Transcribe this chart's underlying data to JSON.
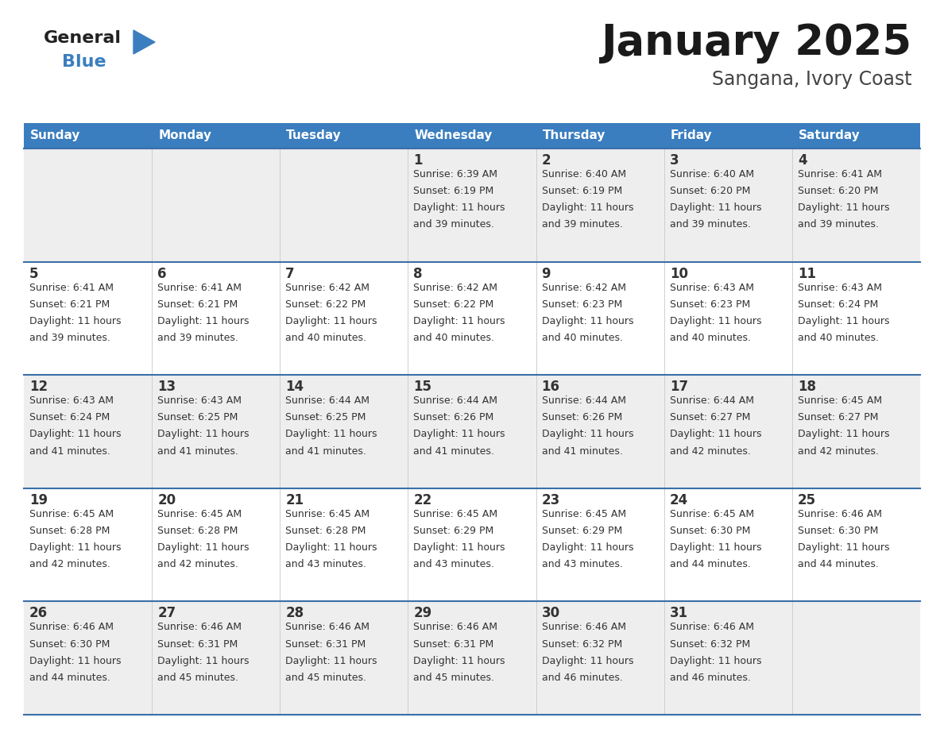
{
  "title": "January 2025",
  "subtitle": "Sangana, Ivory Coast",
  "header_bg": "#3a7ebf",
  "header_text": "#ffffff",
  "row_bg_light": "#eeeeee",
  "row_bg_white": "#ffffff",
  "cell_border_color": "#3a6fa8",
  "day_names": [
    "Sunday",
    "Monday",
    "Tuesday",
    "Wednesday",
    "Thursday",
    "Friday",
    "Saturday"
  ],
  "days": [
    {
      "day": 1,
      "col": 3,
      "row": 0,
      "sunrise": "6:39 AM",
      "sunset": "6:19 PM",
      "daylight_line3": "Daylight: 11 hours",
      "daylight_line4": "and 39 minutes."
    },
    {
      "day": 2,
      "col": 4,
      "row": 0,
      "sunrise": "6:40 AM",
      "sunset": "6:19 PM",
      "daylight_line3": "Daylight: 11 hours",
      "daylight_line4": "and 39 minutes."
    },
    {
      "day": 3,
      "col": 5,
      "row": 0,
      "sunrise": "6:40 AM",
      "sunset": "6:20 PM",
      "daylight_line3": "Daylight: 11 hours",
      "daylight_line4": "and 39 minutes."
    },
    {
      "day": 4,
      "col": 6,
      "row": 0,
      "sunrise": "6:41 AM",
      "sunset": "6:20 PM",
      "daylight_line3": "Daylight: 11 hours",
      "daylight_line4": "and 39 minutes."
    },
    {
      "day": 5,
      "col": 0,
      "row": 1,
      "sunrise": "6:41 AM",
      "sunset": "6:21 PM",
      "daylight_line3": "Daylight: 11 hours",
      "daylight_line4": "and 39 minutes."
    },
    {
      "day": 6,
      "col": 1,
      "row": 1,
      "sunrise": "6:41 AM",
      "sunset": "6:21 PM",
      "daylight_line3": "Daylight: 11 hours",
      "daylight_line4": "and 39 minutes."
    },
    {
      "day": 7,
      "col": 2,
      "row": 1,
      "sunrise": "6:42 AM",
      "sunset": "6:22 PM",
      "daylight_line3": "Daylight: 11 hours",
      "daylight_line4": "and 40 minutes."
    },
    {
      "day": 8,
      "col": 3,
      "row": 1,
      "sunrise": "6:42 AM",
      "sunset": "6:22 PM",
      "daylight_line3": "Daylight: 11 hours",
      "daylight_line4": "and 40 minutes."
    },
    {
      "day": 9,
      "col": 4,
      "row": 1,
      "sunrise": "6:42 AM",
      "sunset": "6:23 PM",
      "daylight_line3": "Daylight: 11 hours",
      "daylight_line4": "and 40 minutes."
    },
    {
      "day": 10,
      "col": 5,
      "row": 1,
      "sunrise": "6:43 AM",
      "sunset": "6:23 PM",
      "daylight_line3": "Daylight: 11 hours",
      "daylight_line4": "and 40 minutes."
    },
    {
      "day": 11,
      "col": 6,
      "row": 1,
      "sunrise": "6:43 AM",
      "sunset": "6:24 PM",
      "daylight_line3": "Daylight: 11 hours",
      "daylight_line4": "and 40 minutes."
    },
    {
      "day": 12,
      "col": 0,
      "row": 2,
      "sunrise": "6:43 AM",
      "sunset": "6:24 PM",
      "daylight_line3": "Daylight: 11 hours",
      "daylight_line4": "and 41 minutes."
    },
    {
      "day": 13,
      "col": 1,
      "row": 2,
      "sunrise": "6:43 AM",
      "sunset": "6:25 PM",
      "daylight_line3": "Daylight: 11 hours",
      "daylight_line4": "and 41 minutes."
    },
    {
      "day": 14,
      "col": 2,
      "row": 2,
      "sunrise": "6:44 AM",
      "sunset": "6:25 PM",
      "daylight_line3": "Daylight: 11 hours",
      "daylight_line4": "and 41 minutes."
    },
    {
      "day": 15,
      "col": 3,
      "row": 2,
      "sunrise": "6:44 AM",
      "sunset": "6:26 PM",
      "daylight_line3": "Daylight: 11 hours",
      "daylight_line4": "and 41 minutes."
    },
    {
      "day": 16,
      "col": 4,
      "row": 2,
      "sunrise": "6:44 AM",
      "sunset": "6:26 PM",
      "daylight_line3": "Daylight: 11 hours",
      "daylight_line4": "and 41 minutes."
    },
    {
      "day": 17,
      "col": 5,
      "row": 2,
      "sunrise": "6:44 AM",
      "sunset": "6:27 PM",
      "daylight_line3": "Daylight: 11 hours",
      "daylight_line4": "and 42 minutes."
    },
    {
      "day": 18,
      "col": 6,
      "row": 2,
      "sunrise": "6:45 AM",
      "sunset": "6:27 PM",
      "daylight_line3": "Daylight: 11 hours",
      "daylight_line4": "and 42 minutes."
    },
    {
      "day": 19,
      "col": 0,
      "row": 3,
      "sunrise": "6:45 AM",
      "sunset": "6:28 PM",
      "daylight_line3": "Daylight: 11 hours",
      "daylight_line4": "and 42 minutes."
    },
    {
      "day": 20,
      "col": 1,
      "row": 3,
      "sunrise": "6:45 AM",
      "sunset": "6:28 PM",
      "daylight_line3": "Daylight: 11 hours",
      "daylight_line4": "and 42 minutes."
    },
    {
      "day": 21,
      "col": 2,
      "row": 3,
      "sunrise": "6:45 AM",
      "sunset": "6:28 PM",
      "daylight_line3": "Daylight: 11 hours",
      "daylight_line4": "and 43 minutes."
    },
    {
      "day": 22,
      "col": 3,
      "row": 3,
      "sunrise": "6:45 AM",
      "sunset": "6:29 PM",
      "daylight_line3": "Daylight: 11 hours",
      "daylight_line4": "and 43 minutes."
    },
    {
      "day": 23,
      "col": 4,
      "row": 3,
      "sunrise": "6:45 AM",
      "sunset": "6:29 PM",
      "daylight_line3": "Daylight: 11 hours",
      "daylight_line4": "and 43 minutes."
    },
    {
      "day": 24,
      "col": 5,
      "row": 3,
      "sunrise": "6:45 AM",
      "sunset": "6:30 PM",
      "daylight_line3": "Daylight: 11 hours",
      "daylight_line4": "and 44 minutes."
    },
    {
      "day": 25,
      "col": 6,
      "row": 3,
      "sunrise": "6:46 AM",
      "sunset": "6:30 PM",
      "daylight_line3": "Daylight: 11 hours",
      "daylight_line4": "and 44 minutes."
    },
    {
      "day": 26,
      "col": 0,
      "row": 4,
      "sunrise": "6:46 AM",
      "sunset": "6:30 PM",
      "daylight_line3": "Daylight: 11 hours",
      "daylight_line4": "and 44 minutes."
    },
    {
      "day": 27,
      "col": 1,
      "row": 4,
      "sunrise": "6:46 AM",
      "sunset": "6:31 PM",
      "daylight_line3": "Daylight: 11 hours",
      "daylight_line4": "and 45 minutes."
    },
    {
      "day": 28,
      "col": 2,
      "row": 4,
      "sunrise": "6:46 AM",
      "sunset": "6:31 PM",
      "daylight_line3": "Daylight: 11 hours",
      "daylight_line4": "and 45 minutes."
    },
    {
      "day": 29,
      "col": 3,
      "row": 4,
      "sunrise": "6:46 AM",
      "sunset": "6:31 PM",
      "daylight_line3": "Daylight: 11 hours",
      "daylight_line4": "and 45 minutes."
    },
    {
      "day": 30,
      "col": 4,
      "row": 4,
      "sunrise": "6:46 AM",
      "sunset": "6:32 PM",
      "daylight_line3": "Daylight: 11 hours",
      "daylight_line4": "and 46 minutes."
    },
    {
      "day": 31,
      "col": 5,
      "row": 4,
      "sunrise": "6:46 AM",
      "sunset": "6:32 PM",
      "daylight_line3": "Daylight: 11 hours",
      "daylight_line4": "and 46 minutes."
    }
  ],
  "num_rows": 5,
  "title_fontsize": 38,
  "subtitle_fontsize": 17,
  "header_fontsize": 11,
  "day_num_fontsize": 12,
  "cell_text_fontsize": 9,
  "logo_general_color": "#222222",
  "logo_blue_color": "#3a7ebf",
  "title_color": "#1a1a1a",
  "subtitle_color": "#444444",
  "text_color": "#333333"
}
